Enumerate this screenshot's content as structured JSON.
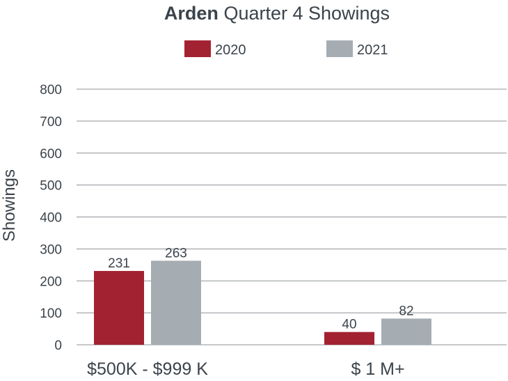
{
  "chart_data": {
    "type": "bar",
    "title_bold": "Arden",
    "title_rest": " Quarter 4 Showings",
    "ylabel": "Showings",
    "xlabel": "",
    "categories": [
      "$500K - $999 K",
      "$ 1 M+"
    ],
    "series": [
      {
        "name": "2020",
        "values": [
          231,
          40
        ],
        "color": "#a32232"
      },
      {
        "name": "2021",
        "values": [
          263,
          82
        ],
        "color": "#a5adb3"
      }
    ],
    "yticks": [
      0,
      100,
      200,
      300,
      400,
      500,
      600,
      700,
      800
    ],
    "ylim": [
      0,
      800
    ],
    "grid": true,
    "legend": "top-center"
  }
}
